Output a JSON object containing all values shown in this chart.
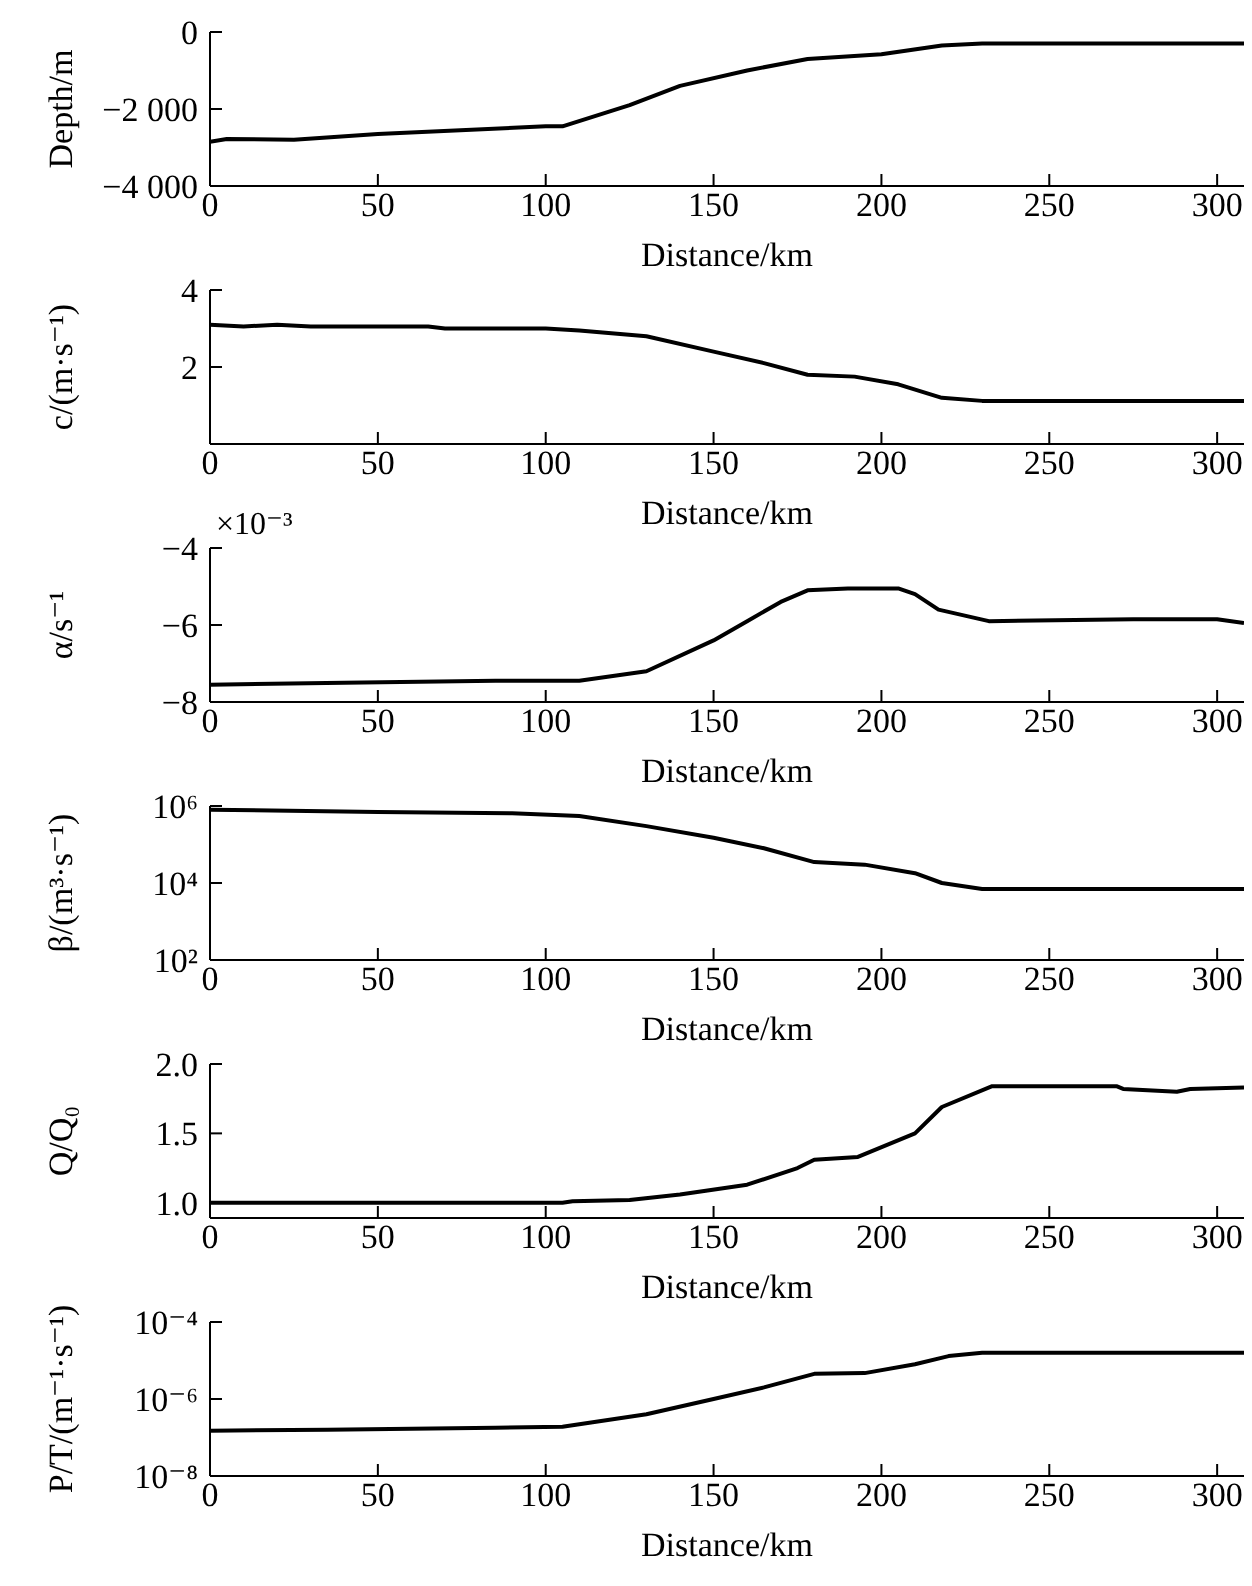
{
  "chart_data": [
    {
      "type": "line",
      "xlabel": "Distance/km",
      "ylabel": "Depth/m",
      "xlim": [
        0,
        308
      ],
      "xticks": [
        0,
        50,
        100,
        150,
        200,
        250,
        300
      ],
      "ylim": [
        -4000,
        0
      ],
      "yticks": [
        {
          "value": -4000,
          "label": "−4 000"
        },
        {
          "value": -2000,
          "label": "−2 000"
        },
        0
      ],
      "x": [
        0,
        5,
        25,
        50,
        100,
        105,
        125,
        140,
        160,
        178,
        200,
        218,
        230,
        308
      ],
      "series": [
        {
          "color": "#000000",
          "values": [
            -2850,
            -2780,
            -2800,
            -2650,
            -2450,
            -2450,
            -1900,
            -1400,
            -1000,
            -700,
            -580,
            -350,
            -300,
            -300
          ]
        }
      ]
    },
    {
      "type": "line",
      "xlabel": "Distance/km",
      "ylabel": "c/(m·s⁻¹)",
      "xlim": [
        0,
        308
      ],
      "xticks": [
        0,
        50,
        100,
        150,
        200,
        250,
        300
      ],
      "ylim": [
        0,
        4
      ],
      "yticks": [
        {
          "value": 0,
          "label": null
        },
        2,
        4
      ],
      "x": [
        0,
        10,
        20,
        30,
        65,
        70,
        100,
        110,
        130,
        150,
        165,
        178,
        192,
        205,
        218,
        230,
        308
      ],
      "series": [
        {
          "color": "#000000",
          "values": [
            3.1,
            3.05,
            3.1,
            3.05,
            3.05,
            3.0,
            3.0,
            2.95,
            2.8,
            2.4,
            2.1,
            1.8,
            1.75,
            1.55,
            1.2,
            1.12,
            1.12
          ]
        }
      ]
    },
    {
      "type": "line",
      "xlabel": "Distance/km",
      "ylabel": "α/s⁻¹",
      "annotations": [
        "×10⁻³"
      ],
      "xlim": [
        0,
        308
      ],
      "xticks": [
        0,
        50,
        100,
        150,
        200,
        250,
        300
      ],
      "ylim": [
        -8,
        -4
      ],
      "yticks": [
        {
          "value": -8,
          "label": "−8"
        },
        {
          "value": -6,
          "label": "−6"
        },
        {
          "value": -4,
          "label": "−4"
        }
      ],
      "x": [
        0,
        40,
        85,
        110,
        130,
        150,
        160,
        170,
        178,
        190,
        205,
        210,
        217,
        232,
        275,
        300,
        308
      ],
      "series": [
        {
          "color": "#000000",
          "values": [
            -7.55,
            -7.5,
            -7.45,
            -7.45,
            -7.2,
            -6.4,
            -5.9,
            -5.4,
            -5.1,
            -5.05,
            -5.05,
            -5.2,
            -5.6,
            -5.9,
            -5.85,
            -5.85,
            -5.95
          ]
        }
      ]
    },
    {
      "type": "line",
      "xlabel": "Distance/km",
      "ylabel": "β/(m³·s⁻¹)",
      "log": "y",
      "xlim": [
        0,
        308
      ],
      "xticks": [
        0,
        50,
        100,
        150,
        200,
        250,
        300
      ],
      "ylim": [
        100,
        1000000
      ],
      "yticks": [
        {
          "value": 100,
          "label": "10²"
        },
        {
          "value": 10000,
          "label": "10⁴"
        },
        {
          "value": 1000000,
          "label": "10⁶"
        }
      ],
      "x": [
        0,
        50,
        90,
        110,
        130,
        150,
        165,
        180,
        195,
        210,
        218,
        230,
        308
      ],
      "series": [
        {
          "color": "#000000",
          "values": [
            800000,
            700000,
            650000,
            550000,
            300000,
            150000,
            80000,
            35000,
            30000,
            18000,
            10000,
            7000,
            7000
          ]
        }
      ]
    },
    {
      "type": "line",
      "xlabel": "Distance/km",
      "ylabel": "Q/Q₀",
      "xlim": [
        0,
        308
      ],
      "xticks": [
        0,
        50,
        100,
        150,
        200,
        250,
        300
      ],
      "ylim": [
        0.89,
        2.0
      ],
      "yticks": [
        {
          "value": 1,
          "label": "1.0"
        },
        1.5,
        {
          "value": 2,
          "label": "2.0"
        }
      ],
      "x": [
        0,
        105,
        108,
        125,
        140,
        160,
        175,
        180,
        193,
        210,
        218,
        233,
        270,
        272,
        288,
        292,
        308
      ],
      "series": [
        {
          "color": "#000000",
          "values": [
            1.0,
            1.0,
            1.01,
            1.02,
            1.06,
            1.13,
            1.25,
            1.31,
            1.33,
            1.5,
            1.69,
            1.84,
            1.84,
            1.82,
            1.8,
            1.82,
            1.83
          ]
        }
      ]
    },
    {
      "type": "line",
      "xlabel": "Distance/km",
      "ylabel": "P/T/(m⁻¹·s⁻¹)",
      "log": "y",
      "xlim": [
        0,
        308
      ],
      "xticks": [
        0,
        50,
        100,
        150,
        200,
        250,
        300
      ],
      "ylim": [
        1e-08,
        0.0001
      ],
      "yticks": [
        {
          "value": 1e-08,
          "label": "10⁻⁸"
        },
        {
          "value": 1e-06,
          "label": "10⁻⁶"
        },
        {
          "value": 0.0001,
          "label": "10⁻⁴"
        }
      ],
      "x": [
        0,
        35,
        85,
        105,
        130,
        150,
        165,
        180,
        195,
        210,
        220,
        230,
        308
      ],
      "series": [
        {
          "color": "#000000",
          "values": [
            1.5e-07,
            1.6e-07,
            1.8e-07,
            1.9e-07,
            4e-07,
            1e-06,
            2e-06,
            4.5e-06,
            4.7e-06,
            8e-06,
            1.3e-05,
            1.6e-05,
            1.6e-05
          ]
        }
      ]
    }
  ]
}
